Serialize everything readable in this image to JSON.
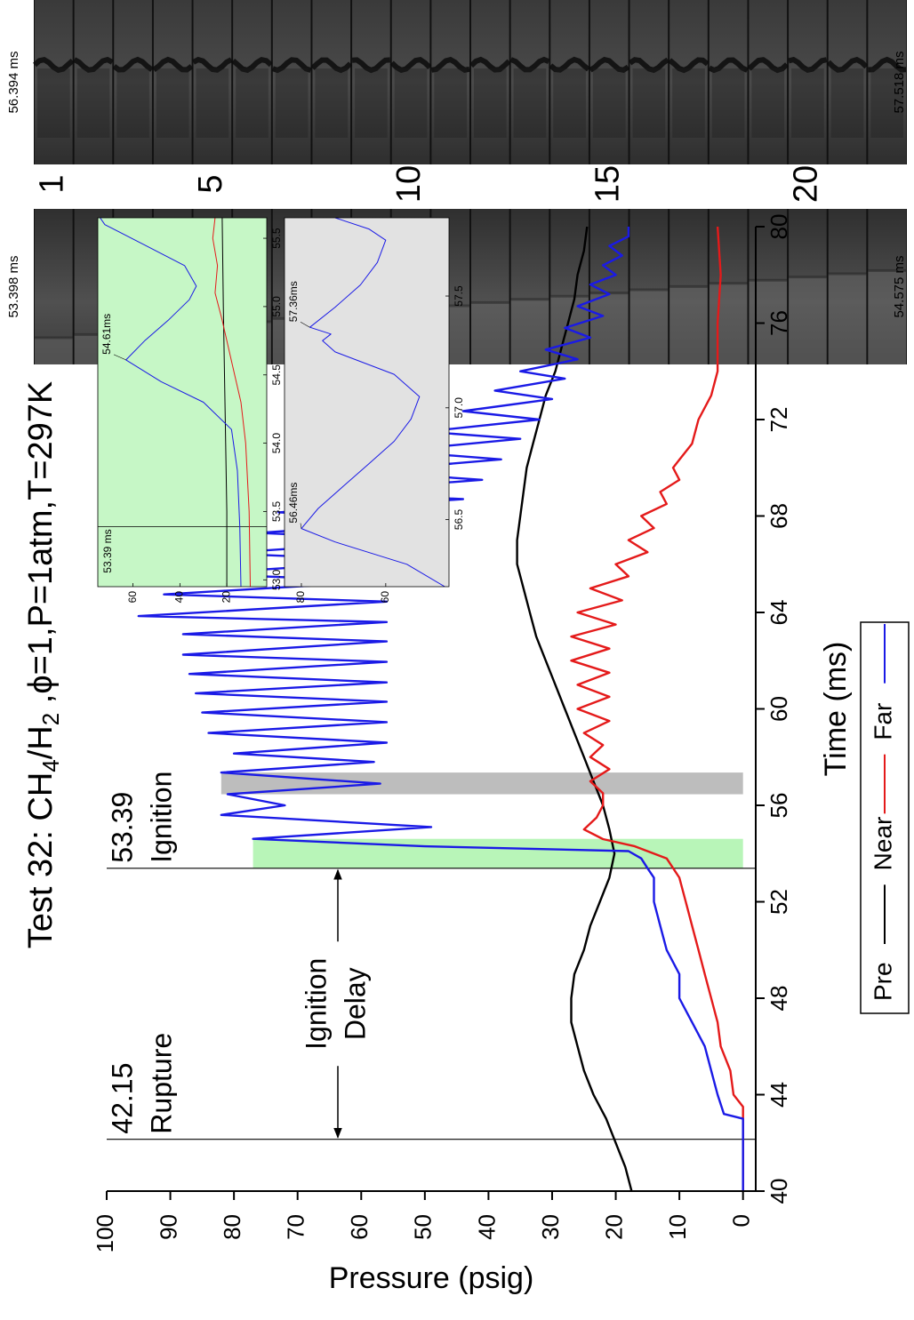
{
  "chart_data": [
    {
      "type": "line",
      "title_parts": [
        "Test 32: CH",
        "4",
        "/H",
        "2",
        " ,ϕ=1,P=1atm,T=297K"
      ],
      "x_label": "Time (ms)",
      "y_label": "Pressure (psig)",
      "xlim": [
        40,
        80
      ],
      "ylim": [
        -2,
        100
      ],
      "xticks": [
        40,
        44,
        48,
        52,
        56,
        60,
        64,
        68,
        72,
        76,
        80
      ],
      "yticks": [
        0,
        10,
        20,
        30,
        40,
        50,
        60,
        70,
        80,
        90,
        100
      ],
      "legend": "bottom",
      "series": [
        {
          "name": "Pre",
          "color": "#000000",
          "x": [
            40,
            41,
            42,
            43,
            44,
            45,
            46,
            47,
            48,
            49,
            50,
            51,
            52,
            53,
            54,
            55,
            56,
            57,
            58,
            59,
            60,
            61,
            62,
            63,
            64,
            65,
            66,
            67,
            68,
            69,
            70,
            71,
            72,
            73,
            74,
            75,
            76,
            77,
            78,
            79,
            80
          ],
          "values": [
            17.5,
            18.5,
            20,
            21.5,
            23.5,
            25,
            26,
            27,
            27,
            26.5,
            25,
            24,
            22.5,
            21,
            20.2,
            21,
            22,
            23.5,
            25,
            26.5,
            28,
            29.5,
            31,
            32.5,
            33.5,
            34.5,
            35.5,
            35.5,
            35,
            34.5,
            34,
            33,
            32,
            31,
            29.5,
            28.5,
            27.5,
            26.5,
            26,
            25,
            24.5
          ]
        },
        {
          "name": "Near",
          "color": "#e41a1a",
          "x": [
            40,
            43.5,
            44,
            45,
            46,
            47,
            48,
            49,
            50,
            51,
            52,
            53,
            53.8,
            54.3,
            54.6,
            55,
            55.5,
            56,
            56.5,
            57,
            57.5,
            58,
            58.5,
            59,
            59.5,
            60,
            60.5,
            61,
            61.5,
            62,
            62.5,
            63,
            63.5,
            64,
            64.5,
            65,
            65.5,
            66,
            66.5,
            67,
            67.5,
            68,
            68.5,
            69,
            69.5,
            70,
            71,
            72,
            73,
            74,
            75,
            76,
            78,
            80
          ],
          "values": [
            0,
            0,
            1.5,
            2,
            3.5,
            4,
            5,
            6,
            7,
            8,
            9,
            10,
            12,
            17,
            22,
            25,
            23,
            22,
            22,
            24,
            21,
            24,
            22,
            25,
            21,
            26,
            21,
            26,
            21,
            27,
            21,
            27,
            20,
            26,
            19,
            24,
            18,
            20,
            15,
            18,
            14,
            16,
            12,
            13,
            10,
            11,
            8,
            7,
            5,
            4,
            4,
            4,
            3.5,
            4
          ]
        },
        {
          "name": "Far",
          "color": "#1a1ae6",
          "x": [
            40,
            43,
            43.2,
            44,
            45,
            46,
            47,
            48,
            49,
            50,
            51,
            52,
            53,
            53.39,
            53.8,
            54.1,
            54.3,
            54.61,
            55.1,
            55.6,
            56,
            56.46,
            56.9,
            57.36,
            57.8,
            58.15,
            58.6,
            59,
            59.45,
            59.85,
            60.3,
            60.65,
            61.1,
            61.45,
            61.95,
            62.25,
            62.8,
            63.1,
            63.6,
            63.85,
            64.45,
            64.75,
            65.3,
            65.6,
            66.15,
            66.45,
            67,
            67.3,
            67.85,
            68.15,
            68.7,
            69,
            69.5,
            69.85,
            70.35,
            70.7,
            71.2,
            71.5,
            72,
            72.35,
            72.85,
            73.2,
            73.7,
            74,
            74.5,
            74.9,
            75.4,
            75.8,
            76.3,
            76.7,
            77.2,
            77.6,
            78,
            78.4,
            78.8,
            79.2,
            79.6,
            80
          ],
          "values": [
            0,
            0,
            3,
            4,
            5,
            6,
            8,
            10,
            10,
            12,
            13,
            14,
            14,
            15,
            16,
            18,
            50,
            77,
            49,
            82,
            72,
            81,
            57,
            82,
            58,
            80,
            56,
            84,
            56,
            85,
            56,
            86,
            56,
            87,
            56,
            88,
            56,
            88,
            56,
            95,
            56,
            91,
            56,
            86,
            54,
            82,
            51,
            76,
            47,
            73,
            44,
            66,
            41,
            60,
            38,
            55,
            35,
            50,
            32,
            44,
            30,
            39,
            28,
            35,
            26,
            31,
            24,
            28,
            22,
            26,
            21,
            24,
            20,
            22,
            19,
            21,
            18,
            18
          ]
        }
      ],
      "annotations": [
        {
          "x": 42.15,
          "text": [
            "42.15",
            "Rupture"
          ]
        },
        {
          "x": 53.39,
          "text": [
            "53.39",
            "Ignition"
          ]
        }
      ],
      "delay_label": [
        "Ignition",
        "Delay"
      ],
      "bands": [
        {
          "x": [
            53.39,
            54.61
          ],
          "y": 77,
          "color": "#b8f5b8"
        },
        {
          "x": [
            56.46,
            57.36
          ],
          "y": 82,
          "color": "#bdbdbd"
        }
      ]
    },
    {
      "type": "line",
      "xlim": [
        52.95,
        55.65
      ],
      "ylim": [
        3,
        75
      ],
      "xticks": [
        {
          "value": 53,
          "label": "53.0"
        },
        53.5,
        {
          "value": 54,
          "label": "54.0"
        },
        54.5,
        {
          "value": 55,
          "label": "55.0"
        },
        55.5
      ],
      "yticks": [
        20,
        40,
        60
      ],
      "background": "#c6f7c6",
      "series": [
        {
          "color": "#000000",
          "x": [
            52.95,
            53.5,
            54,
            54.5,
            55,
            55.65
          ],
          "values": [
            20,
            20,
            20.5,
            21,
            21.5,
            22
          ]
        },
        {
          "color": "#e41a1a",
          "x": [
            52.95,
            53.5,
            54,
            54.3,
            54.6,
            54.9,
            55.1,
            55.3,
            55.5,
            55.65
          ],
          "values": [
            10,
            10.5,
            12,
            14,
            18,
            22,
            25,
            24,
            26,
            25
          ]
        },
        {
          "color": "#1a1ae6",
          "x": [
            52.95,
            53.39,
            53.8,
            54.1,
            54.3,
            54.45,
            54.61,
            54.75,
            54.9,
            55.05,
            55.15,
            55.3,
            55.45,
            55.6,
            55.65
          ],
          "values": [
            14,
            14.5,
            15.5,
            18,
            30,
            48,
            63,
            55,
            45,
            36,
            33,
            38,
            55,
            72,
            74
          ]
        }
      ],
      "vlines": [
        {
          "x": 53.39,
          "label": "53.39 ms"
        }
      ],
      "callouts": [
        {
          "x": 54.61,
          "y": 63,
          "label": "54.61ms"
        }
      ]
    },
    {
      "type": "line",
      "xlim": [
        56.2,
        57.85
      ],
      "ylim": [
        45,
        84
      ],
      "xticks": [
        56.5,
        {
          "value": 57,
          "label": "57.0"
        },
        57.5
      ],
      "yticks": [
        60,
        80
      ],
      "background": "#e2e2e2",
      "series": [
        {
          "color": "#1a1ae6",
          "x": [
            56.2,
            56.3,
            56.4,
            56.46,
            56.55,
            56.65,
            56.75,
            56.85,
            56.95,
            57.05,
            57.15,
            57.25,
            57.3,
            57.33,
            57.36,
            57.45,
            57.55,
            57.65,
            57.75,
            57.8,
            57.85
          ],
          "values": [
            46,
            55,
            72,
            80,
            76,
            70,
            64,
            58,
            54,
            52,
            58,
            72,
            75,
            73,
            78,
            72,
            66,
            62,
            60,
            64,
            72
          ]
        }
      ],
      "callouts": [
        {
          "x": 56.46,
          "y": 80,
          "label": "56.46ms"
        },
        {
          "x": 57.36,
          "y": 78,
          "label": "57.36ms"
        }
      ]
    }
  ],
  "photo_strips": [
    {
      "start_label": "56.394 ms",
      "end_label": "57.518 ms"
    },
    {
      "start_label": "53.398 ms",
      "end_label": "54.575 ms"
    }
  ],
  "frame_numbers": [
    "1",
    "5",
    "10",
    "15",
    "20"
  ]
}
